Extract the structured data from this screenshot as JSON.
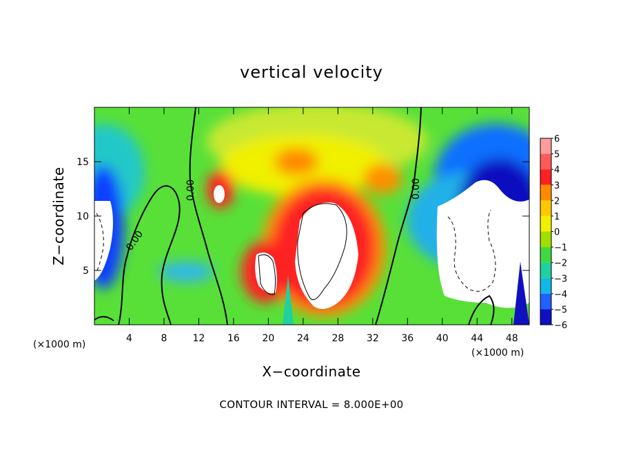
{
  "chart_data": {
    "type": "heatmap",
    "title": "vertical velocity",
    "xlabel": "X−coordinate",
    "ylabel": "Z−coordinate",
    "x_unit_note_left": "(×1000 m)",
    "x_unit_note_right": "(×1000 m)",
    "xlim": [
      0,
      50
    ],
    "ylim": [
      0,
      20
    ],
    "x_ticks": [
      4,
      8,
      12,
      16,
      20,
      24,
      28,
      32,
      36,
      40,
      44,
      48
    ],
    "x_tick_labels": [
      "4",
      "8",
      "12",
      "16",
      "20",
      "24",
      "28",
      "32",
      "36",
      "40",
      "44",
      "48"
    ],
    "y_ticks": [
      5,
      10,
      15
    ],
    "y_tick_labels": [
      "5",
      "10",
      "15"
    ],
    "colorbar": {
      "levels": [
        6,
        5,
        4,
        3,
        2,
        1,
        0,
        -1,
        -2,
        -3,
        -4,
        -5,
        -6
      ],
      "labels": [
        "6",
        "5",
        "4",
        "3",
        "2",
        "1",
        "0",
        "−1",
        "−2",
        "−3",
        "−4",
        "−5",
        "−6"
      ],
      "colors": [
        "#ff9c9c",
        "#ff5a5a",
        "#ff2020",
        "#ff8a00",
        "#ffc800",
        "#f0f000",
        "#a0e000",
        "#40d840",
        "#20d0a0",
        "#10b8e8",
        "#2060ff",
        "#1010c0",
        "#8000a0"
      ]
    },
    "contour_labels": [
      "0.00",
      "0.00",
      "0.00"
    ],
    "footer": "CONTOUR INTERVAL = 8.000E+00",
    "cells": [
      {
        "x": "0-2",
        "z": "0-4",
        "w": "-1"
      },
      {
        "x": "0-2",
        "z": "4-11",
        "w": "-6"
      },
      {
        "x": "0-2",
        "z": "11-20",
        "w": "-1"
      },
      {
        "x": "10-14",
        "z": "4-7",
        "w": "-2"
      },
      {
        "x": "12-16",
        "z": "10-14",
        "w": "5"
      },
      {
        "x": "17-21",
        "z": "3-8",
        "w": "5"
      },
      {
        "x": "21-31",
        "z": "1-12",
        "w": "6"
      },
      {
        "x": "22-28",
        "z": "14-17",
        "w": "3"
      },
      {
        "x": "31-35",
        "z": "12-15",
        "w": "3"
      },
      {
        "x": "38-50",
        "z": "12-20",
        "w": "-4"
      },
      {
        "x": "40-50",
        "z": "2-13",
        "w": "-6"
      }
    ]
  }
}
